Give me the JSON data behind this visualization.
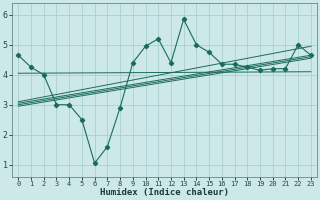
{
  "xlabel": "Humidex (Indice chaleur)",
  "background_color": "#cce8e8",
  "line_color": "#1a6b5a",
  "grid_color": "#aacfcf",
  "xlim": [
    -0.5,
    23.5
  ],
  "ylim": [
    0.6,
    6.4
  ],
  "yticks": [
    1,
    2,
    3,
    4,
    5,
    6
  ],
  "xticks": [
    0,
    1,
    2,
    3,
    4,
    5,
    6,
    7,
    8,
    9,
    10,
    11,
    12,
    13,
    14,
    15,
    16,
    17,
    18,
    19,
    20,
    21,
    22,
    23
  ],
  "main_line": {
    "x": [
      0,
      1,
      2,
      3,
      4,
      5,
      6,
      7,
      8,
      9,
      10,
      11,
      12,
      13,
      14,
      15,
      16,
      17,
      18,
      19,
      20,
      21,
      22,
      23
    ],
    "y": [
      4.65,
      4.25,
      4.0,
      3.0,
      3.0,
      2.5,
      1.05,
      1.6,
      2.9,
      4.4,
      4.95,
      5.2,
      4.4,
      5.85,
      5.0,
      4.75,
      4.35,
      4.35,
      4.25,
      4.15,
      4.2,
      4.2,
      5.0,
      4.65
    ]
  },
  "reg_lines": [
    {
      "x": [
        0,
        23
      ],
      "y": [
        4.05,
        4.1
      ]
    },
    {
      "x": [
        0,
        23
      ],
      "y": [
        2.95,
        4.55
      ]
    },
    {
      "x": [
        0,
        23
      ],
      "y": [
        3.0,
        4.6
      ]
    },
    {
      "x": [
        0,
        23
      ],
      "y": [
        3.05,
        4.65
      ]
    },
    {
      "x": [
        0,
        23
      ],
      "y": [
        3.1,
        4.95
      ]
    }
  ]
}
